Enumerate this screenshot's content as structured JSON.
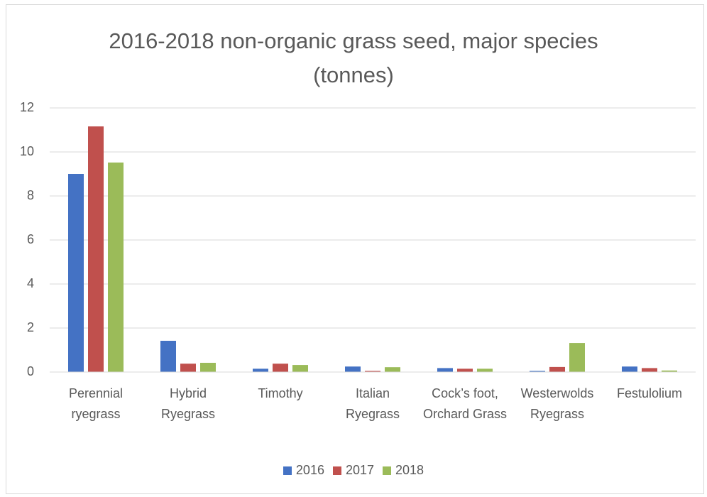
{
  "chart_data": {
    "type": "bar",
    "title": "2016-2018 non-organic grass seed, major species (tonnes)",
    "categories": [
      "Perennial ryegrass",
      "Hybrid Ryegrass",
      "Timothy",
      "Italian Ryegrass",
      "Cock’s foot, Orchard Grass",
      "Westerwolds Ryegrass",
      "Festulolium"
    ],
    "series": [
      {
        "name": "2016",
        "color": "#4472c4",
        "values": [
          9.0,
          1.42,
          0.15,
          0.25,
          0.18,
          0.05,
          0.25
        ]
      },
      {
        "name": "2017",
        "color": "#c0504d",
        "values": [
          11.16,
          0.38,
          0.38,
          0.05,
          0.15,
          0.23,
          0.18
        ]
      },
      {
        "name": "2018",
        "color": "#9bbb59",
        "values": [
          9.52,
          0.42,
          0.32,
          0.22,
          0.15,
          1.32,
          0.07
        ]
      }
    ],
    "ylim": [
      0,
      12
    ],
    "yticks": [
      0,
      2,
      4,
      6,
      8,
      10,
      12
    ],
    "grid": true,
    "legend": "bottom"
  }
}
